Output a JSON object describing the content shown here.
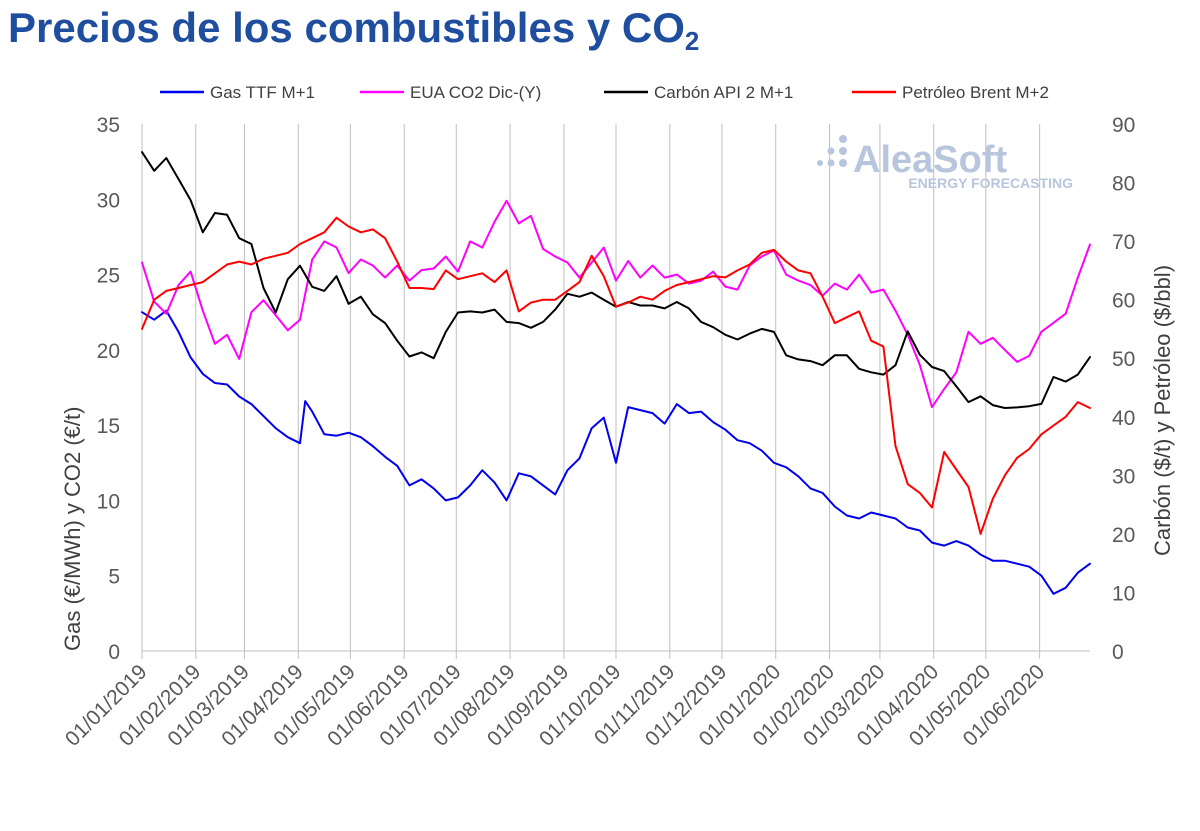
{
  "page": {
    "title_main": "Precios de los combustibles y CO",
    "title_sub": "2"
  },
  "watermark": {
    "brand": "AleaSoft",
    "tagline": "ENERGY FORECASTING",
    "color": "#b7c5dd"
  },
  "chart_data": {
    "type": "line",
    "left_axis": {
      "title": "Gas (€/MWh) y CO2 (€/t)",
      "min": 0,
      "max": 35,
      "ticks": [
        "0",
        "5",
        "10",
        "15",
        "20",
        "25",
        "30",
        "35"
      ]
    },
    "right_axis": {
      "title": "Carbón ($/t) y Petróleo ($/bbl)",
      "min": 0,
      "max": 90,
      "ticks": [
        "0",
        "10",
        "20",
        "30",
        "40",
        "50",
        "60",
        "70",
        "80",
        "90"
      ]
    },
    "x_axis": {
      "start": "01/01/2019",
      "end": "30/06/2020",
      "tick_labels": [
        "01/01/2019",
        "01/02/2019",
        "01/03/2019",
        "01/04/2019",
        "01/05/2019",
        "01/06/2019",
        "01/07/2019",
        "01/08/2019",
        "01/09/2019",
        "01/10/2019",
        "01/11/2019",
        "01/12/2019",
        "01/01/2020",
        "01/02/2020",
        "01/03/2020",
        "01/04/2020",
        "01/05/2020",
        "01/06/2020"
      ]
    },
    "grid": "vertical",
    "legend_position": "top",
    "series": [
      {
        "name": "Gas TTF M+1",
        "color": "#0000ee",
        "axis": "left",
        "x": [
          "2019-01-01",
          "2019-01-08",
          "2019-01-15",
          "2019-01-22",
          "2019-01-29",
          "2019-02-05",
          "2019-02-12",
          "2019-02-19",
          "2019-02-26",
          "2019-03-05",
          "2019-03-12",
          "2019-03-19",
          "2019-03-26",
          "2019-04-02",
          "2019-04-05",
          "2019-04-09",
          "2019-04-16",
          "2019-04-23",
          "2019-04-30",
          "2019-05-07",
          "2019-05-14",
          "2019-05-21",
          "2019-05-28",
          "2019-06-04",
          "2019-06-11",
          "2019-06-18",
          "2019-06-25",
          "2019-07-02",
          "2019-07-09",
          "2019-07-16",
          "2019-07-23",
          "2019-07-30",
          "2019-08-06",
          "2019-08-13",
          "2019-08-20",
          "2019-08-27",
          "2019-09-03",
          "2019-09-10",
          "2019-09-17",
          "2019-09-24",
          "2019-10-01",
          "2019-10-08",
          "2019-10-15",
          "2019-10-22",
          "2019-10-29",
          "2019-11-05",
          "2019-11-12",
          "2019-11-19",
          "2019-11-26",
          "2019-12-03",
          "2019-12-10",
          "2019-12-17",
          "2019-12-24",
          "2019-12-31",
          "2020-01-07",
          "2020-01-14",
          "2020-01-21",
          "2020-01-28",
          "2020-02-04",
          "2020-02-11",
          "2020-02-18",
          "2020-02-25",
          "2020-03-03",
          "2020-03-10",
          "2020-03-17",
          "2020-03-24",
          "2020-03-31",
          "2020-04-07",
          "2020-04-14",
          "2020-04-21",
          "2020-04-28",
          "2020-05-05",
          "2020-05-12",
          "2020-05-19",
          "2020-05-26",
          "2020-06-02",
          "2020-06-09",
          "2020-06-16",
          "2020-06-23",
          "2020-06-30"
        ],
        "values": [
          22.5,
          22.0,
          22.6,
          21.2,
          19.5,
          18.4,
          17.8,
          17.7,
          16.9,
          16.4,
          15.6,
          14.8,
          14.2,
          13.8,
          16.6,
          15.9,
          14.4,
          14.3,
          14.5,
          14.2,
          13.6,
          12.9,
          12.3,
          11.0,
          11.4,
          10.8,
          10.0,
          10.2,
          11.0,
          12.0,
          11.2,
          10.0,
          11.8,
          11.6,
          11.0,
          10.4,
          12.0,
          12.8,
          14.8,
          15.5,
          12.5,
          16.2,
          16.0,
          15.8,
          15.1,
          16.4,
          15.8,
          15.9,
          15.2,
          14.7,
          14.0,
          13.8,
          13.3,
          12.5,
          12.2,
          11.6,
          10.8,
          10.5,
          9.6,
          9.0,
          8.8,
          9.2,
          9.0,
          8.8,
          8.2,
          8.0,
          7.2,
          7.0,
          7.3,
          7.0,
          6.4,
          6.0,
          6.0,
          5.8,
          5.6,
          5.0,
          3.8,
          4.2,
          5.2,
          5.8
        ]
      },
      {
        "name": "EUA CO2 Dic-(Y)",
        "color": "#ff00ff",
        "axis": "left",
        "x": [
          "2019-01-01",
          "2019-01-08",
          "2019-01-15",
          "2019-01-22",
          "2019-01-29",
          "2019-02-05",
          "2019-02-12",
          "2019-02-19",
          "2019-02-26",
          "2019-03-05",
          "2019-03-12",
          "2019-03-19",
          "2019-03-26",
          "2019-04-02",
          "2019-04-09",
          "2019-04-16",
          "2019-04-23",
          "2019-04-30",
          "2019-05-07",
          "2019-05-14",
          "2019-05-21",
          "2019-05-28",
          "2019-06-04",
          "2019-06-11",
          "2019-06-18",
          "2019-06-25",
          "2019-07-02",
          "2019-07-09",
          "2019-07-16",
          "2019-07-23",
          "2019-07-30",
          "2019-08-06",
          "2019-08-13",
          "2019-08-20",
          "2019-08-27",
          "2019-09-03",
          "2019-09-10",
          "2019-09-17",
          "2019-09-24",
          "2019-10-01",
          "2019-10-08",
          "2019-10-15",
          "2019-10-22",
          "2019-10-29",
          "2019-11-05",
          "2019-11-12",
          "2019-11-19",
          "2019-11-26",
          "2019-12-03",
          "2019-12-10",
          "2019-12-17",
          "2019-12-24",
          "2019-12-31",
          "2020-01-07",
          "2020-01-14",
          "2020-01-21",
          "2020-01-28",
          "2020-02-04",
          "2020-02-11",
          "2020-02-18",
          "2020-02-25",
          "2020-03-03",
          "2020-03-10",
          "2020-03-17",
          "2020-03-24",
          "2020-03-31",
          "2020-04-07",
          "2020-04-14",
          "2020-04-21",
          "2020-04-28",
          "2020-05-05",
          "2020-05-12",
          "2020-05-19",
          "2020-05-26",
          "2020-06-02",
          "2020-06-09",
          "2020-06-16",
          "2020-06-23",
          "2020-06-30"
        ],
        "values": [
          25.8,
          23.2,
          22.4,
          24.3,
          25.2,
          22.6,
          20.4,
          21.0,
          19.4,
          22.5,
          23.3,
          22.3,
          21.3,
          22.0,
          26.0,
          27.2,
          26.8,
          25.1,
          26.0,
          25.6,
          24.8,
          25.6,
          24.6,
          25.3,
          25.4,
          26.2,
          25.2,
          27.2,
          26.8,
          28.5,
          29.9,
          28.4,
          28.9,
          26.7,
          26.2,
          25.8,
          24.8,
          25.8,
          26.8,
          24.6,
          25.9,
          24.8,
          25.6,
          24.8,
          25.0,
          24.4,
          24.6,
          25.2,
          24.2,
          24.0,
          25.6,
          26.2,
          26.6,
          25.0,
          24.6,
          24.3,
          23.6,
          24.4,
          24.0,
          25.0,
          23.8,
          24.0,
          22.6,
          21.0,
          19.0,
          16.2,
          17.4,
          18.5,
          21.2,
          20.4,
          20.8,
          20.0,
          19.2,
          19.6,
          21.2,
          21.8,
          22.4,
          24.8,
          27.0
        ]
      },
      {
        "name": "Carbón API 2 M+1",
        "color": "#000000",
        "axis": "right",
        "x": [
          "2019-01-01",
          "2019-01-08",
          "2019-01-15",
          "2019-01-22",
          "2019-01-29",
          "2019-02-05",
          "2019-02-12",
          "2019-02-19",
          "2019-02-26",
          "2019-03-05",
          "2019-03-12",
          "2019-03-19",
          "2019-03-26",
          "2019-04-02",
          "2019-04-09",
          "2019-04-16",
          "2019-04-23",
          "2019-04-30",
          "2019-05-07",
          "2019-05-14",
          "2019-05-21",
          "2019-05-28",
          "2019-06-04",
          "2019-06-11",
          "2019-06-18",
          "2019-06-25",
          "2019-07-02",
          "2019-07-09",
          "2019-07-16",
          "2019-07-23",
          "2019-07-30",
          "2019-08-06",
          "2019-08-13",
          "2019-08-20",
          "2019-08-27",
          "2019-09-03",
          "2019-09-10",
          "2019-09-17",
          "2019-09-24",
          "2019-10-01",
          "2019-10-08",
          "2019-10-15",
          "2019-10-22",
          "2019-10-29",
          "2019-11-05",
          "2019-11-12",
          "2019-11-19",
          "2019-11-26",
          "2019-12-03",
          "2019-12-10",
          "2019-12-17",
          "2019-12-24",
          "2019-12-31",
          "2020-01-07",
          "2020-01-14",
          "2020-01-21",
          "2020-01-28",
          "2020-02-04",
          "2020-02-11",
          "2020-02-18",
          "2020-02-25",
          "2020-03-03",
          "2020-03-10",
          "2020-03-17",
          "2020-03-24",
          "2020-03-31",
          "2020-04-07",
          "2020-04-14",
          "2020-04-21",
          "2020-04-28",
          "2020-05-05",
          "2020-05-12",
          "2020-05-19",
          "2020-05-26",
          "2020-06-02",
          "2020-06-09",
          "2020-06-16",
          "2020-06-23",
          "2020-06-30"
        ],
        "values": [
          85.2,
          82.0,
          84.2,
          80.6,
          77.0,
          71.5,
          74.8,
          74.5,
          70.5,
          69.5,
          62.0,
          57.8,
          63.5,
          65.8,
          62.2,
          61.5,
          64.0,
          59.3,
          60.5,
          57.5,
          56.0,
          53.0,
          50.3,
          51.0,
          50.0,
          54.5,
          57.8,
          58.0,
          57.8,
          58.3,
          56.2,
          56.0,
          55.2,
          56.2,
          58.3,
          61.0,
          60.5,
          61.2,
          60.0,
          58.8,
          59.6,
          59.0,
          59.0,
          58.5,
          59.6,
          58.5,
          56.2,
          55.3,
          54.0,
          53.2,
          54.2,
          55.0,
          54.5,
          50.5,
          49.8,
          49.5,
          48.8,
          50.5,
          50.5,
          48.2,
          47.6,
          47.2,
          48.8,
          54.6,
          50.6,
          48.5,
          47.8,
          45.2,
          42.5,
          43.5,
          42.0,
          41.5,
          41.6,
          41.8,
          42.2,
          46.8,
          46.0,
          47.2,
          50.2
        ]
      },
      {
        "name": "Petróleo Brent M+2",
        "color": "#ff0000",
        "axis": "right",
        "x": [
          "2019-01-01",
          "2019-01-08",
          "2019-01-15",
          "2019-01-22",
          "2019-01-29",
          "2019-02-05",
          "2019-02-12",
          "2019-02-19",
          "2019-02-26",
          "2019-03-05",
          "2019-03-12",
          "2019-03-19",
          "2019-03-26",
          "2019-04-02",
          "2019-04-09",
          "2019-04-16",
          "2019-04-23",
          "2019-04-30",
          "2019-05-07",
          "2019-05-14",
          "2019-05-21",
          "2019-05-28",
          "2019-06-04",
          "2019-06-11",
          "2019-06-18",
          "2019-06-25",
          "2019-07-02",
          "2019-07-09",
          "2019-07-16",
          "2019-07-23",
          "2019-07-30",
          "2019-08-06",
          "2019-08-13",
          "2019-08-20",
          "2019-08-27",
          "2019-09-03",
          "2019-09-10",
          "2019-09-17",
          "2019-09-24",
          "2019-10-01",
          "2019-10-08",
          "2019-10-15",
          "2019-10-22",
          "2019-10-29",
          "2019-11-05",
          "2019-11-12",
          "2019-11-19",
          "2019-11-26",
          "2019-12-03",
          "2019-12-10",
          "2019-12-17",
          "2019-12-24",
          "2019-12-31",
          "2020-01-07",
          "2020-01-14",
          "2020-01-21",
          "2020-01-28",
          "2020-02-04",
          "2020-02-11",
          "2020-02-18",
          "2020-02-25",
          "2020-03-03",
          "2020-03-10",
          "2020-03-17",
          "2020-03-24",
          "2020-03-31",
          "2020-04-07",
          "2020-04-14",
          "2020-04-21",
          "2020-04-28",
          "2020-05-05",
          "2020-05-12",
          "2020-05-19",
          "2020-05-26",
          "2020-06-02",
          "2020-06-09",
          "2020-06-16",
          "2020-06-23",
          "2020-06-30"
        ],
        "values": [
          55.0,
          60.0,
          61.5,
          62.0,
          62.5,
          63.0,
          64.5,
          66.0,
          66.5,
          66.0,
          67.0,
          67.5,
          68.0,
          69.5,
          70.5,
          71.5,
          74.0,
          72.5,
          71.5,
          72.0,
          70.5,
          66.5,
          62.0,
          62.0,
          61.8,
          65.0,
          63.5,
          64.0,
          64.5,
          63.0,
          65.0,
          58.0,
          59.5,
          60.0,
          60.0,
          61.5,
          63.0,
          67.5,
          64.0,
          58.8,
          59.5,
          60.5,
          60.0,
          61.5,
          62.5,
          63.0,
          63.5,
          64.0,
          63.8,
          65.0,
          66.0,
          68.0,
          68.5,
          66.5,
          65.0,
          64.5,
          60.5,
          56.0,
          57.0,
          58.0,
          53.0,
          52.0,
          35.0,
          28.5,
          27.0,
          24.5,
          34.0,
          31.0,
          28.0,
          20.0,
          26.0,
          30.0,
          33.0,
          34.5,
          37.0,
          38.5,
          40.0,
          42.5,
          41.5
        ]
      }
    ]
  }
}
